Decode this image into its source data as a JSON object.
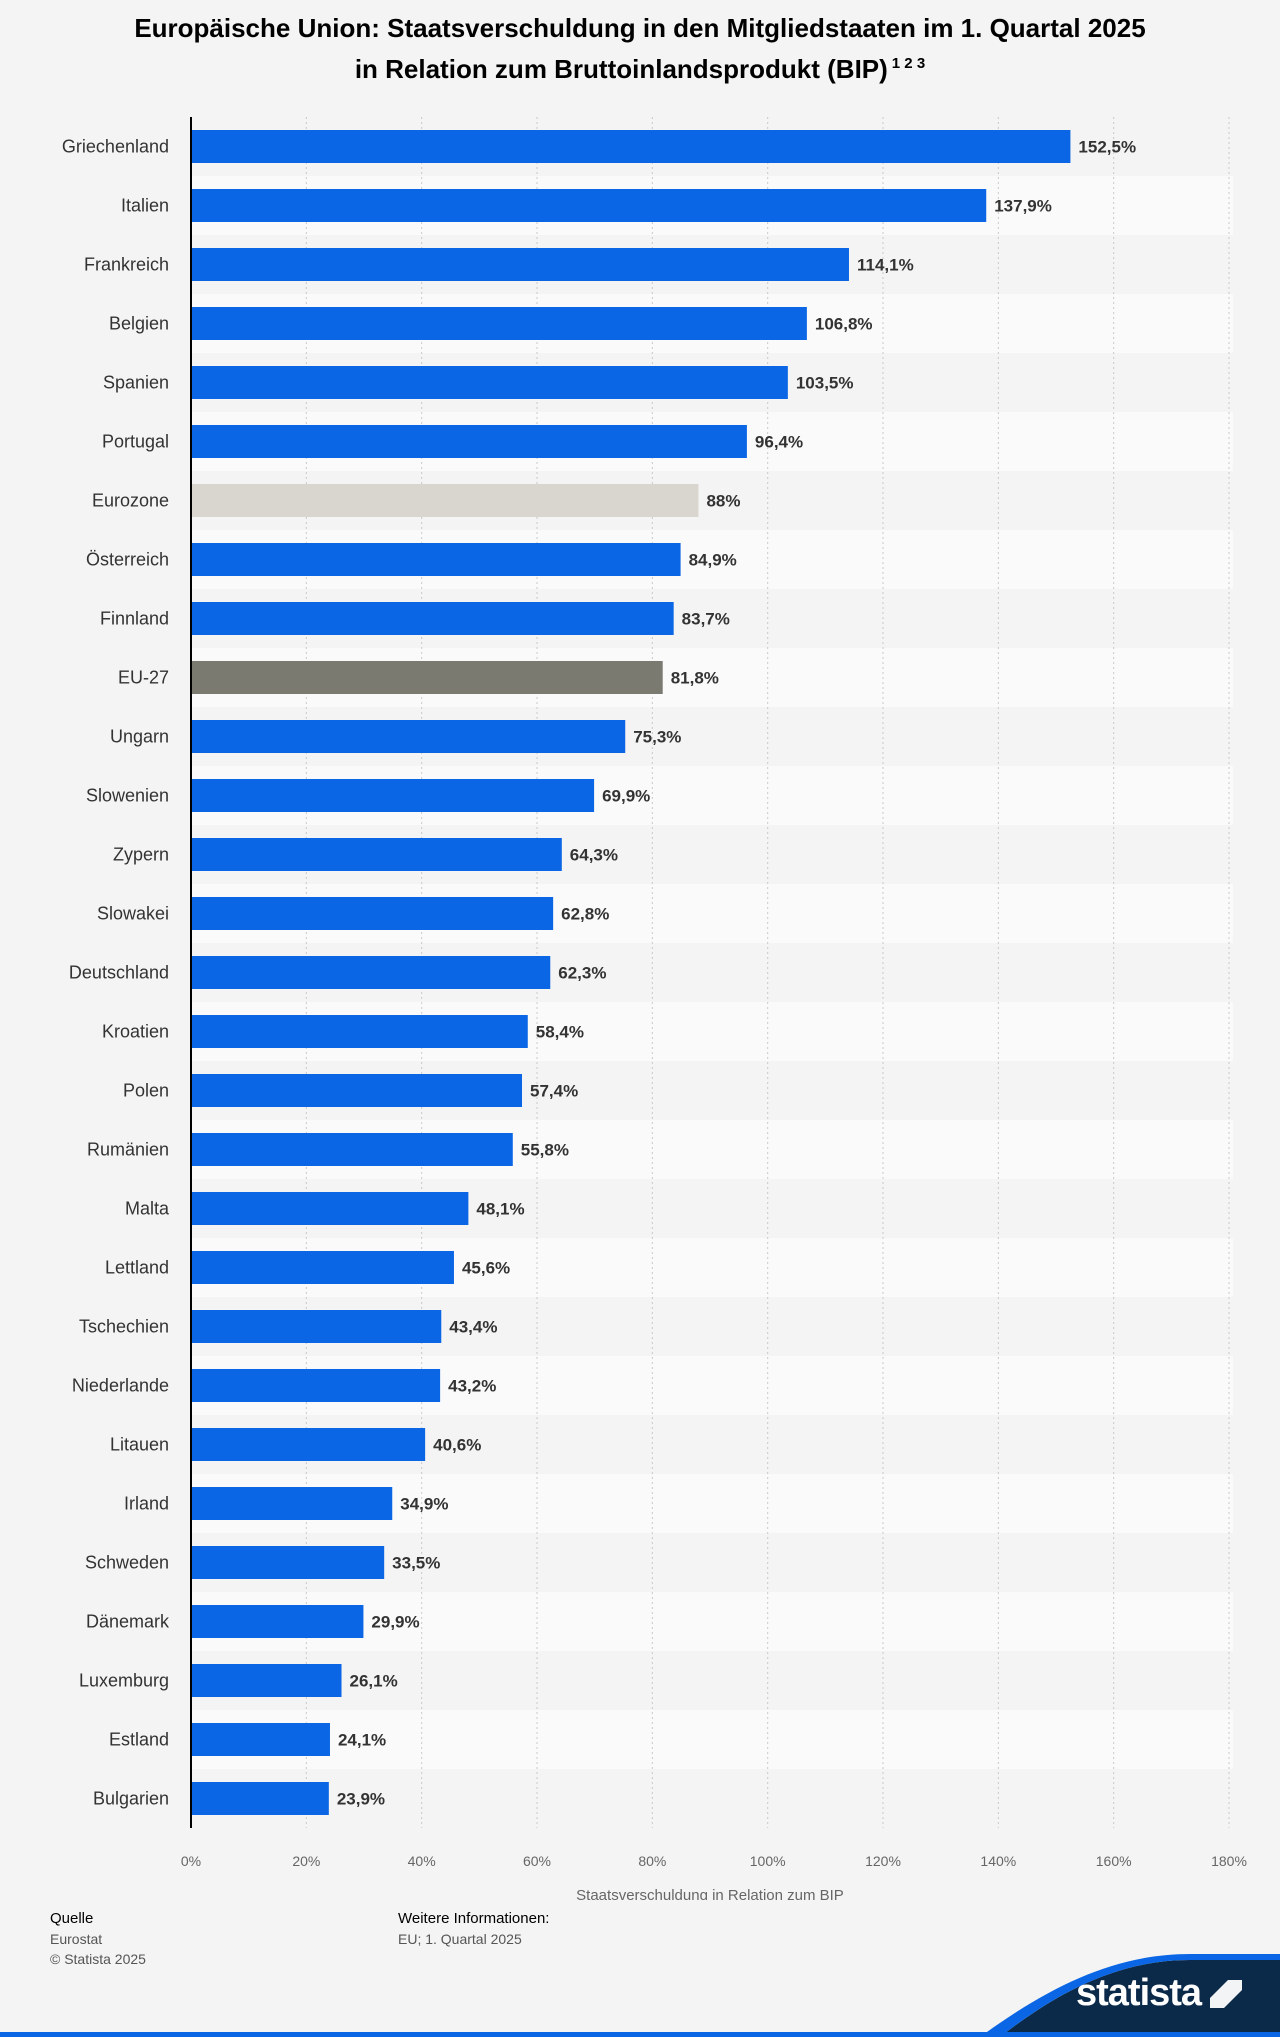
{
  "title_line1": "Europäische Union: Staatsverschuldung in den Mitgliedstaaten im 1. Quartal 2025",
  "title_line2": "in Relation zum Bruttoinlandsprodukt (BIP)",
  "title_footnotes": "1 2 3",
  "chart_data": {
    "type": "bar",
    "orientation": "horizontal",
    "title": "Europäische Union: Staatsverschuldung in den Mitgliedstaaten im 1. Quartal 2025 in Relation zum Bruttoinlandsprodukt (BIP)",
    "xlabel": "Staatsverschuldung in Relation zum BIP",
    "ylabel": "",
    "xlim": [
      0,
      180
    ],
    "xticks": [
      "0%",
      "20%",
      "40%",
      "60%",
      "80%",
      "100%",
      "120%",
      "140%",
      "160%",
      "180%"
    ],
    "grid": true,
    "unit": "%",
    "colors": {
      "default": "#0a66e4",
      "Eurozone": "#d8d6ce",
      "EU-27": "#7b7a70"
    },
    "categories": [
      "Griechenland",
      "Italien",
      "Frankreich",
      "Belgien",
      "Spanien",
      "Portugal",
      "Eurozone",
      "Österreich",
      "Finnland",
      "EU-27",
      "Ungarn",
      "Slowenien",
      "Zypern",
      "Slowakei",
      "Deutschland",
      "Kroatien",
      "Polen",
      "Rumänien",
      "Malta",
      "Lettland",
      "Tschechien",
      "Niederlande",
      "Litauen",
      "Irland",
      "Schweden",
      "Dänemark",
      "Luxemburg",
      "Estland",
      "Bulgarien"
    ],
    "values": [
      152.5,
      137.9,
      114.1,
      106.8,
      103.5,
      96.4,
      88,
      84.9,
      83.7,
      81.8,
      75.3,
      69.9,
      64.3,
      62.8,
      62.3,
      58.4,
      57.4,
      55.8,
      48.1,
      45.6,
      43.4,
      43.2,
      40.6,
      34.9,
      33.5,
      29.9,
      26.1,
      24.1,
      23.9
    ],
    "value_labels": [
      "152,5%",
      "137,9%",
      "114,1%",
      "106,8%",
      "103,5%",
      "96,4%",
      "88%",
      "84,9%",
      "83,7%",
      "81,8%",
      "75,3%",
      "69,9%",
      "64,3%",
      "62,8%",
      "62,3%",
      "58,4%",
      "57,4%",
      "55,8%",
      "48,1%",
      "45,6%",
      "43,4%",
      "43,2%",
      "40,6%",
      "34,9%",
      "33,5%",
      "29,9%",
      "26,1%",
      "24,1%",
      "23,9%"
    ]
  },
  "footer": {
    "source_label": "Quelle",
    "source_value": "Eurostat",
    "copyright": "© Statista 2025",
    "info_label": "Weitere Informationen:",
    "info_value": "EU; 1. Quartal 2025"
  },
  "logo": {
    "text": "statista"
  }
}
